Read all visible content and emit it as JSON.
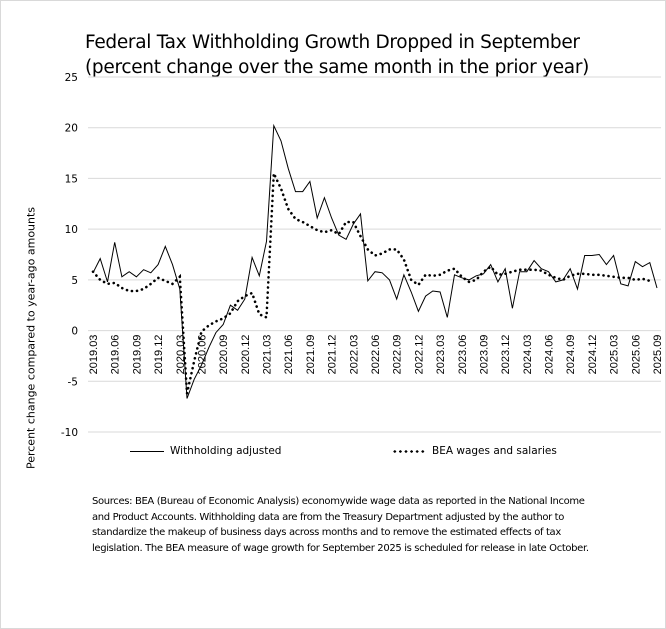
{
  "chart_data": {
    "type": "line",
    "title": "Federal Tax Withholding Growth Dropped in September",
    "subtitle": "(percent change over the same month in the prior year)",
    "xlabel": "",
    "ylabel": "Percent change compared to year-ago amounts",
    "ylim": [
      -10,
      25
    ],
    "yticks": [
      25,
      20,
      15,
      10,
      5,
      0,
      -5,
      -10
    ],
    "grid": true,
    "legend_position": "bottom",
    "x_start": "2019.03",
    "x_end": "2025.09",
    "xtick_labels": [
      "2019.03",
      "2019.06",
      "2019.09",
      "2019.12",
      "2020.03",
      "2020.06",
      "2020.09",
      "2020.12",
      "2021.03",
      "2021.06",
      "2021.09",
      "2021.12",
      "2022.03",
      "2022.06",
      "2022.09",
      "2022.12",
      "2023.03",
      "2023.06",
      "2023.09",
      "2023.12",
      "2024.03",
      "2024.06",
      "2024.09",
      "2024.12",
      "2025.03",
      "2025.06",
      "2025.09"
    ],
    "series": [
      {
        "name": "Withholding adjusted",
        "style": "solid",
        "color": "#000000",
        "values": [
          5.7,
          7.1,
          4.8,
          8.7,
          5.3,
          5.8,
          5.3,
          6.0,
          5.7,
          6.5,
          8.3,
          6.5,
          4.1,
          -6.7,
          -4.8,
          -3.4,
          -1.7,
          -0.2,
          0.6,
          2.5,
          2.0,
          3.1,
          7.2,
          5.4,
          8.8,
          20.2,
          18.7,
          16.0,
          13.7,
          13.7,
          14.7,
          11.1,
          13.1,
          11.1,
          9.4,
          9.0,
          10.5,
          11.5,
          4.9,
          5.8,
          5.7,
          5.0,
          3.1,
          5.5,
          3.8,
          1.9,
          3.4,
          3.9,
          3.8,
          1.3,
          5.5,
          5.2,
          5.0,
          5.4,
          5.6,
          6.5,
          4.8,
          6.1,
          2.2,
          5.8,
          5.8,
          6.9,
          6.1,
          5.8,
          4.8,
          5.0,
          6.1,
          4.1,
          7.4,
          7.4,
          7.5,
          6.5,
          7.4,
          4.6,
          4.4,
          6.8,
          6.3,
          6.7,
          4.2
        ]
      },
      {
        "name": "BEA wages and salaries",
        "style": "dotted",
        "color": "#000000",
        "values": [
          5.8,
          5.0,
          4.6,
          4.7,
          4.2,
          3.9,
          3.9,
          4.1,
          4.6,
          5.2,
          4.9,
          4.6,
          5.3,
          -6.2,
          -3.0,
          -0.1,
          0.5,
          0.9,
          1.2,
          1.7,
          2.9,
          3.4,
          3.7,
          1.6,
          1.3,
          15.5,
          14.0,
          12.0,
          11.0,
          10.7,
          10.3,
          9.9,
          9.7,
          9.9,
          9.5,
          10.7,
          10.7,
          9.3,
          8.0,
          7.4,
          7.6,
          8.0,
          8.0,
          7.0,
          5.0,
          4.5,
          5.5,
          5.4,
          5.5,
          5.9,
          6.1,
          5.3,
          4.8,
          5.0,
          5.8,
          6.3,
          5.5,
          5.6,
          5.8,
          6.0,
          6.0,
          6.0,
          5.9,
          5.5,
          5.2,
          5.0,
          5.4,
          5.6,
          5.6,
          5.5,
          5.5,
          5.4,
          5.3,
          5.2,
          5.2,
          5.0,
          5.1,
          4.9
        ]
      }
    ],
    "sources_note": "Sources:  BEA (Bureau of Economic Analysis) economywide wage data as reported in the National Income and Product Accounts. Withholding data are from the Treasury Department adjusted by the author to standardize the makeup of business days across months and to remove the estimated effects of tax legislation. The BEA measure of wage growth for September 2025 is scheduled for release in late October."
  }
}
